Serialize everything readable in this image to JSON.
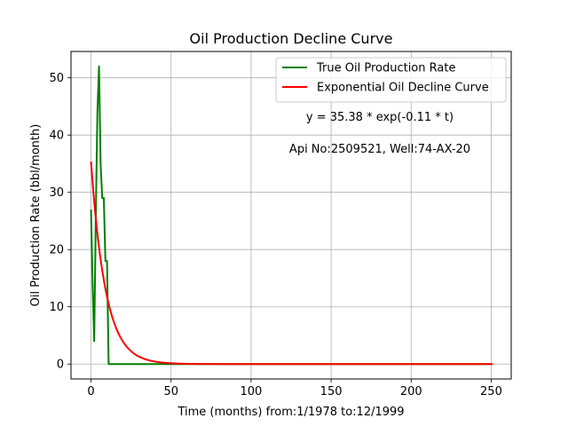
{
  "chart_data": {
    "type": "line",
    "title": "Oil Production Decline Curve",
    "xlabel": "Time (months) from:1/1978 to:12/1999",
    "ylabel": "Oil Production Rate (bbl/month)",
    "xlim": [
      -12.5,
      262.5
    ],
    "ylim": [
      -2.6,
      54.6
    ],
    "xticks": [
      0,
      50,
      100,
      150,
      200,
      250
    ],
    "xtick_labels": [
      "0",
      "50",
      "100",
      "150",
      "200",
      "250"
    ],
    "yticks": [
      0,
      10,
      20,
      30,
      40,
      50
    ],
    "ytick_labels": [
      "0",
      "10",
      "20",
      "30",
      "40",
      "50"
    ],
    "grid": true,
    "legend_position": "top-right",
    "annotations": {
      "equation": "y = 35.38 * exp(-0.11 * t)",
      "well": "Api No:2509521, Well:74-AX-20"
    },
    "series": [
      {
        "name": "True Oil Production Rate",
        "color": "#008000",
        "x": [
          0,
          1,
          2,
          3,
          4,
          5,
          6,
          7,
          8,
          9,
          10,
          11,
          12,
          13,
          20,
          30,
          50,
          100,
          150,
          200,
          250
        ],
        "y": [
          27,
          14,
          4,
          26,
          44,
          52,
          35,
          29,
          29,
          18,
          18,
          0,
          0,
          0,
          0,
          0,
          0,
          0,
          0,
          0,
          0
        ]
      },
      {
        "name": "Exponential Oil Decline Curve",
        "color": "#ff0000",
        "model": {
          "a": 35.38,
          "b": 0.11
        },
        "x_range": [
          0,
          251
        ]
      }
    ]
  }
}
